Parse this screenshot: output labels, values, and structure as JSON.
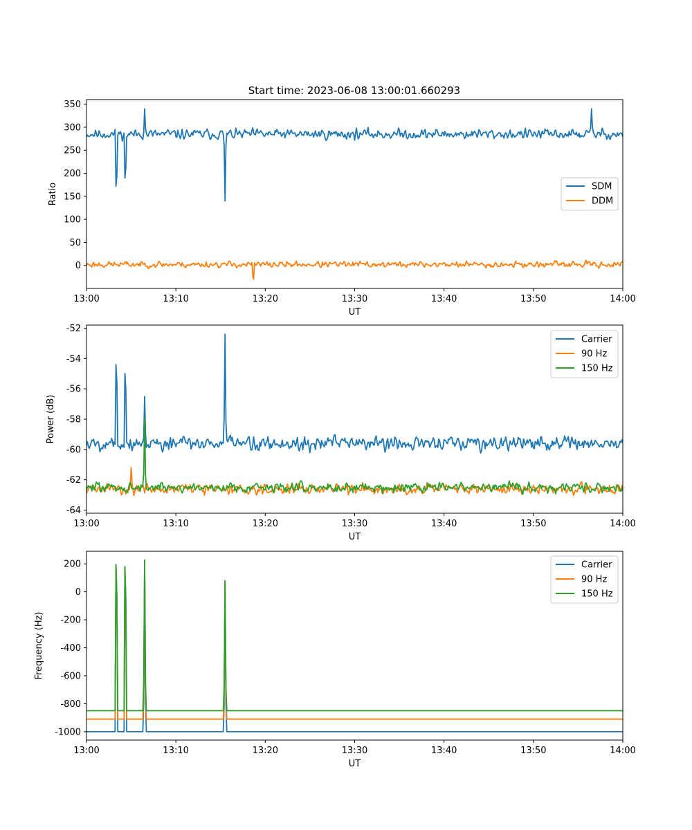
{
  "figure": {
    "title": "Start time: 2023-06-08 13:00:01.660293"
  },
  "chart_data": [
    {
      "type": "line",
      "title": "Start time: 2023-06-08 13:00:01.660293",
      "xlabel": "UT",
      "ylabel": "Ratio",
      "xlim": [
        "13:00",
        "14:00"
      ],
      "ylim": [
        -50,
        360
      ],
      "x_ticks": [
        "13:00",
        "13:10",
        "13:20",
        "13:30",
        "13:40",
        "13:50",
        "14:00"
      ],
      "y_ticks": [
        0,
        50,
        100,
        150,
        200,
        250,
        300,
        350
      ],
      "legend": "center-right",
      "series": [
        {
          "name": "SDM",
          "color": "#1f77b4",
          "base": 285,
          "noise": 42,
          "seed": 11,
          "spikes": [
            {
              "t": "13:03:20",
              "v": 172
            },
            {
              "t": "13:04:20",
              "v": 190
            },
            {
              "t": "13:06:30",
              "v": 340
            },
            {
              "t": "13:15:30",
              "v": 140
            },
            {
              "t": "13:56:30",
              "v": 340
            }
          ]
        },
        {
          "name": "DDM",
          "color": "#ff7f0e",
          "base": 2,
          "noise": 26,
          "seed": 23,
          "spikes": [
            {
              "t": "13:18:40",
              "v": -30
            }
          ]
        }
      ]
    },
    {
      "type": "line",
      "xlabel": "UT",
      "ylabel": "Power (dB)",
      "xlim": [
        "13:00",
        "14:00"
      ],
      "ylim": [
        -64.2,
        -51.8
      ],
      "x_ticks": [
        "13:00",
        "13:10",
        "13:20",
        "13:30",
        "13:40",
        "13:50",
        "14:00"
      ],
      "y_ticks": [
        -64,
        -62,
        -60,
        -58,
        -56,
        -54,
        -52
      ],
      "legend": "upper-right",
      "series": [
        {
          "name": "Carrier",
          "color": "#1f77b4",
          "base": -59.6,
          "noise": 1.9,
          "seed": 5,
          "spikes": [
            {
              "t": "13:03:20",
              "v": -54.4
            },
            {
              "t": "13:04:20",
              "v": -55.0
            },
            {
              "t": "13:06:30",
              "v": -56.5
            },
            {
              "t": "13:15:30",
              "v": -52.4
            }
          ]
        },
        {
          "name": "90 Hz",
          "color": "#ff7f0e",
          "base": -62.6,
          "noise": 1.3,
          "seed": 31,
          "spikes": [
            {
              "t": "13:05:00",
              "v": -61.2
            }
          ]
        },
        {
          "name": "150 Hz",
          "color": "#2ca02c",
          "base": -62.5,
          "noise": 1.3,
          "seed": 47,
          "spikes": [
            {
              "t": "13:06:30",
              "v": -58.0
            }
          ]
        }
      ]
    },
    {
      "type": "line",
      "xlabel": "UT",
      "ylabel": "Frequency (Hz)",
      "xlim": [
        "13:00",
        "14:00"
      ],
      "ylim": [
        -1060,
        290
      ],
      "x_ticks": [
        "13:00",
        "13:10",
        "13:20",
        "13:30",
        "13:40",
        "13:50",
        "14:00"
      ],
      "y_ticks": [
        -1000,
        -800,
        -600,
        -400,
        -200,
        0,
        200
      ],
      "legend": "upper-right",
      "series": [
        {
          "name": "Carrier",
          "color": "#1f77b4",
          "base": -1000,
          "noise": 0,
          "seed": 1,
          "spikes": [
            {
              "t": "13:03:20",
              "v": 190
            },
            {
              "t": "13:04:20",
              "v": 170
            },
            {
              "t": "13:06:30",
              "v": 220
            },
            {
              "t": "13:15:30",
              "v": 70
            }
          ]
        },
        {
          "name": "90 Hz",
          "color": "#ff7f0e",
          "base": -910,
          "noise": 0,
          "seed": 2,
          "spikes": [
            {
              "t": "13:03:20",
              "v": 190
            },
            {
              "t": "13:04:20",
              "v": 175
            },
            {
              "t": "13:06:30",
              "v": 225
            },
            {
              "t": "13:15:30",
              "v": 75
            }
          ]
        },
        {
          "name": "150 Hz",
          "color": "#2ca02c",
          "base": -850,
          "noise": 0,
          "seed": 3,
          "spikes": [
            {
              "t": "13:03:20",
              "v": 195
            },
            {
              "t": "13:04:20",
              "v": 180
            },
            {
              "t": "13:06:30",
              "v": 228
            },
            {
              "t": "13:15:30",
              "v": 80
            }
          ]
        }
      ]
    }
  ]
}
